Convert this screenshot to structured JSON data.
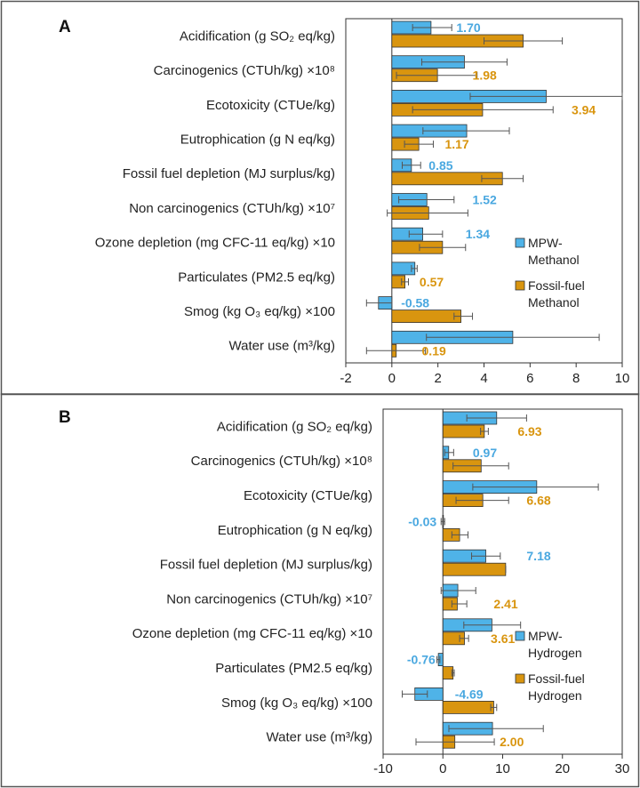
{
  "colors": {
    "mpw": "#4fb3e8",
    "fossil": "#d9950f",
    "mpw_label": "#4aa8e0",
    "fossil_label": "#d9950f",
    "border": "#555555"
  },
  "chart_data": [
    {
      "type": "bar",
      "orientation": "horizontal",
      "panel_label": "A",
      "categories": [
        "Acidification (g SO₂ eq/kg)",
        "Carcinogenics (CTUh/kg) ×10⁸",
        "Ecotoxicity (CTUe/kg)",
        "Eutrophication (g N eq/kg)",
        "Fossil fuel depletion (MJ surplus/kg)",
        "Non carcinogenics (CTUh/kg) ×10⁷",
        "Ozone depletion (mg CFC-11 eq/kg) ×10",
        "Particulates (PM2.5 eq/kg)",
        "Smog (kg O₃ eq/kg) ×100",
        "Water use (m³/kg)"
      ],
      "xlim": [
        -2,
        10
      ],
      "xticks": [
        -2,
        0,
        2,
        4,
        6,
        8,
        10
      ],
      "legend_position": "right",
      "series": [
        {
          "name": "MPW-Methanol",
          "legend_lines": [
            "MPW-",
            "Methanol"
          ],
          "color_key": "mpw",
          "values": [
            1.7,
            3.15,
            6.7,
            3.25,
            0.85,
            1.52,
            1.34,
            1.0,
            -0.58,
            5.25
          ],
          "err_low": [
            0.9,
            1.3,
            3.4,
            1.35,
            0.45,
            0.3,
            0.75,
            0.85,
            -1.1,
            1.5
          ],
          "err_high": [
            2.6,
            5.0,
            10.0,
            5.1,
            1.25,
            2.7,
            2.2,
            1.1,
            0.0,
            9.0
          ]
        },
        {
          "name": "Fossil-fuel Methanol",
          "legend_lines": [
            "Fossil-fuel",
            "Methanol"
          ],
          "color_key": "fossil",
          "values": [
            5.7,
            1.98,
            3.94,
            1.17,
            4.8,
            1.6,
            2.2,
            0.57,
            3.0,
            0.19
          ],
          "err_low": [
            4.0,
            0.2,
            0.9,
            0.55,
            3.9,
            -0.2,
            1.2,
            0.42,
            2.7,
            -1.1
          ],
          "err_high": [
            7.4,
            3.7,
            7.0,
            1.8,
            5.7,
            3.3,
            3.2,
            0.72,
            3.5,
            1.45
          ]
        }
      ],
      "data_labels": [
        {
          "text": "1.70",
          "color_key": "mpw_label",
          "row": 0,
          "pos": "top",
          "x": 2.8
        },
        {
          "text": "1.98",
          "color_key": "fossil_label",
          "row": 1,
          "pos": "bottom",
          "x": 3.5
        },
        {
          "text": "3.94",
          "color_key": "fossil_label",
          "row": 2,
          "pos": "bottom",
          "x": 7.8
        },
        {
          "text": "1.17",
          "color_key": "fossil_label",
          "row": 3,
          "pos": "bottom",
          "x": 2.3
        },
        {
          "text": "0.85",
          "color_key": "mpw_label",
          "row": 4,
          "pos": "top",
          "x": 1.6
        },
        {
          "text": "1.52",
          "color_key": "mpw_label",
          "row": 5,
          "pos": "top",
          "x": 3.5
        },
        {
          "text": "1.34",
          "color_key": "mpw_label",
          "row": 6,
          "pos": "top",
          "x": 3.2
        },
        {
          "text": "0.57",
          "color_key": "fossil_label",
          "row": 7,
          "pos": "bottom",
          "x": 1.2
        },
        {
          "text": "-0.58",
          "color_key": "mpw_label",
          "row": 8,
          "pos": "top",
          "x": 0.4
        },
        {
          "text": "0.19",
          "color_key": "fossil_label",
          "row": 9,
          "pos": "bottom",
          "x": 1.3
        }
      ]
    },
    {
      "type": "bar",
      "orientation": "horizontal",
      "panel_label": "B",
      "categories": [
        "Acidification (g SO₂ eq/kg)",
        "Carcinogenics (CTUh/kg) ×10⁸",
        "Ecotoxicity (CTUe/kg)",
        "Eutrophication (g N eq/kg)",
        "Fossil fuel depletion (MJ surplus/kg)",
        "Non carcinogenics (CTUh/kg) ×10⁷",
        "Ozone depletion (mg CFC-11 eq/kg) ×10",
        "Particulates (PM2.5 eq/kg)",
        "Smog (kg O₃ eq/kg) ×100",
        "Water use (m³/kg)"
      ],
      "xlim": [
        -10,
        30
      ],
      "xticks": [
        -10,
        0,
        10,
        20,
        30
      ],
      "legend_position": "right",
      "series": [
        {
          "name": "MPW-Hydrogen",
          "legend_lines": [
            "MPW-",
            "Hydrogen"
          ],
          "color_key": "mpw",
          "values": [
            9.0,
            0.97,
            15.7,
            -0.03,
            7.18,
            2.5,
            8.2,
            -0.76,
            -4.69,
            8.3
          ],
          "err_low": [
            4.0,
            0.3,
            5.0,
            -0.3,
            4.8,
            -0.3,
            3.5,
            -1.0,
            -6.8,
            1.0
          ],
          "err_high": [
            14.0,
            1.8,
            26.0,
            0.3,
            9.6,
            5.5,
            13.0,
            -0.5,
            -2.6,
            16.8
          ]
        },
        {
          "name": "Fossil-fuel Hydrogen",
          "legend_lines": [
            "Fossil-fuel",
            "Hydrogen"
          ],
          "color_key": "fossil",
          "values": [
            6.93,
            6.4,
            6.68,
            2.8,
            10.5,
            2.41,
            3.61,
            1.7,
            8.5,
            2.0
          ],
          "err_low": [
            6.3,
            1.7,
            2.2,
            1.5,
            10.5,
            1.5,
            2.8,
            1.5,
            8.0,
            -4.5
          ],
          "err_high": [
            7.6,
            11.0,
            11.0,
            4.2,
            10.5,
            4.0,
            4.3,
            1.9,
            9.0,
            8.6
          ]
        }
      ],
      "data_labels": [
        {
          "text": "6.93",
          "color_key": "fossil_label",
          "row": 0,
          "pos": "bottom",
          "x": 12.5
        },
        {
          "text": "0.97",
          "color_key": "mpw_label",
          "row": 1,
          "pos": "top",
          "x": 5.0
        },
        {
          "text": "6.68",
          "color_key": "fossil_label",
          "row": 2,
          "pos": "bottom",
          "x": 14.0
        },
        {
          "text": "-0.03",
          "color_key": "mpw_label",
          "row": 3,
          "pos": "top",
          "x": -5.8
        },
        {
          "text": "7.18",
          "color_key": "mpw_label",
          "row": 4,
          "pos": "top",
          "x": 14.0
        },
        {
          "text": "2.41",
          "color_key": "fossil_label",
          "row": 5,
          "pos": "bottom",
          "x": 8.5
        },
        {
          "text": "3.61",
          "color_key": "fossil_label",
          "row": 6,
          "pos": "bottom",
          "x": 8.0
        },
        {
          "text": "-0.76",
          "color_key": "mpw_label",
          "row": 7,
          "pos": "top",
          "x": -6.0
        },
        {
          "text": "-4.69",
          "color_key": "mpw_label",
          "row": 8,
          "pos": "top",
          "x": 2.0
        },
        {
          "text": "2.00",
          "color_key": "fossil_label",
          "row": 9,
          "pos": "bottom",
          "x": 9.5
        }
      ]
    }
  ]
}
